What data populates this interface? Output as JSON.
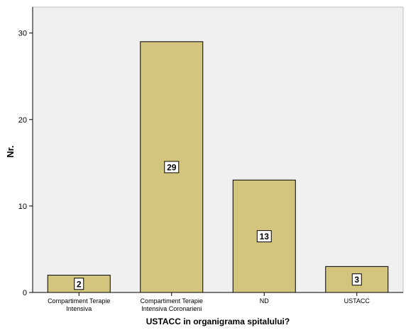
{
  "chart_data": {
    "type": "bar",
    "categories": [
      [
        "Compartiment Terapie",
        "Intensiva"
      ],
      [
        "Compartiment Terapie",
        "Intensiva Coronarieni"
      ],
      [
        "ND"
      ],
      [
        "USTACC"
      ]
    ],
    "values": [
      2,
      29,
      13,
      3
    ],
    "data_labels": [
      "2",
      "29",
      "13",
      "3"
    ],
    "xlabel": "USTACC in organigrama spitalului?",
    "ylabel": "Nr.",
    "ylim": [
      0,
      33
    ],
    "yticks": [
      0,
      10,
      20,
      30
    ],
    "grid": false,
    "colors": {
      "plot_background": "#f0f0f0",
      "bar_fill": "#d3c57e",
      "bar_stroke": "#000000",
      "axis": "#000000"
    }
  }
}
